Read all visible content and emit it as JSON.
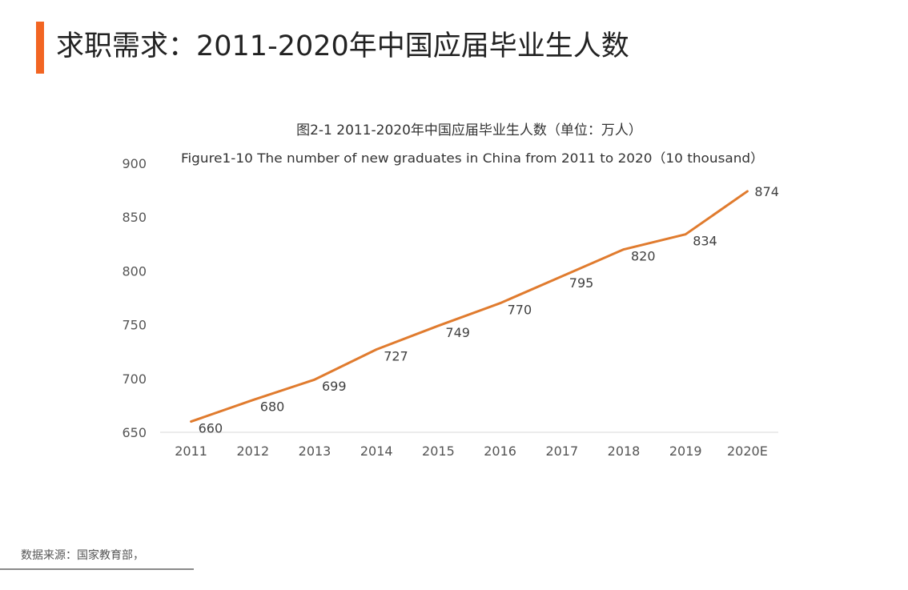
{
  "header": {
    "title": "求职需求：2011-2020年中国应届毕业生人数",
    "accent_color": "#f26522"
  },
  "chart_data": {
    "type": "line",
    "title": "图2-1 2011-2020年中国应届毕业生人数（单位：万人）",
    "subtitle": "Figure1-10 The number of new graduates in China from 2011 to 2020（10 thousand）",
    "categories": [
      "2011",
      "2012",
      "2013",
      "2014",
      "2015",
      "2016",
      "2017",
      "2018",
      "2019",
      "2020E"
    ],
    "series": [
      {
        "values": [
          660,
          680,
          699,
          727,
          749,
          770,
          795,
          820,
          834,
          874
        ],
        "color": "#e07b2e"
      }
    ],
    "ylim": [
      650,
      900
    ],
    "yticks": [
      650,
      700,
      750,
      800,
      850,
      900
    ],
    "data_labels": true,
    "grid": false
  },
  "footer": {
    "source": "数据来源：国家教育部，"
  }
}
